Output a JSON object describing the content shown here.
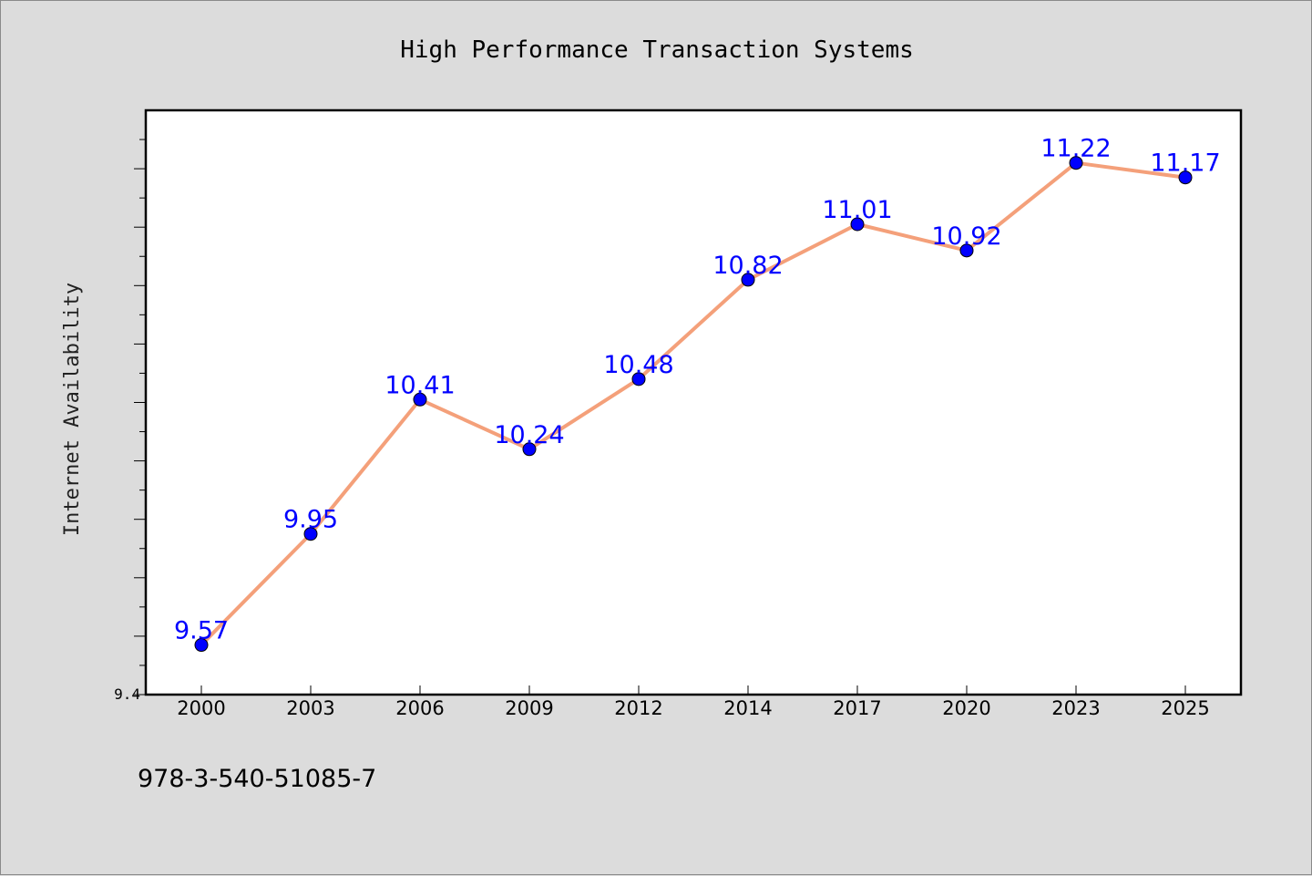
{
  "chart_data": {
    "type": "line",
    "title": "High Performance Transaction Systems",
    "xlabel": "",
    "ylabel": "Internet Availability",
    "categories": [
      "2000",
      "2003",
      "2006",
      "2009",
      "2012",
      "2014",
      "2017",
      "2020",
      "2023",
      "2025"
    ],
    "series": [
      {
        "values": [
          9.57,
          9.95,
          10.41,
          10.24,
          10.48,
          10.82,
          11.01,
          10.92,
          11.22,
          11.17
        ],
        "data_labels": [
          "9.57",
          "9.95",
          "10.41",
          "10.24",
          "10.48",
          "10.82",
          "11.01",
          "10.92",
          "11.22",
          "11.17"
        ],
        "line_color": "#f4a07a",
        "marker_color": "#0000ff",
        "label_color": "#0000ff"
      }
    ],
    "ylim": [
      9.4,
      11.4
    ],
    "ytick_labels": [
      "9.4"
    ],
    "grid": false,
    "legend": "none"
  },
  "footer": {
    "text": "978-3-540-51085-7"
  },
  "colors": {
    "background": "#dcdcdc",
    "plot_background": "#ffffff",
    "axis": "#000000"
  }
}
